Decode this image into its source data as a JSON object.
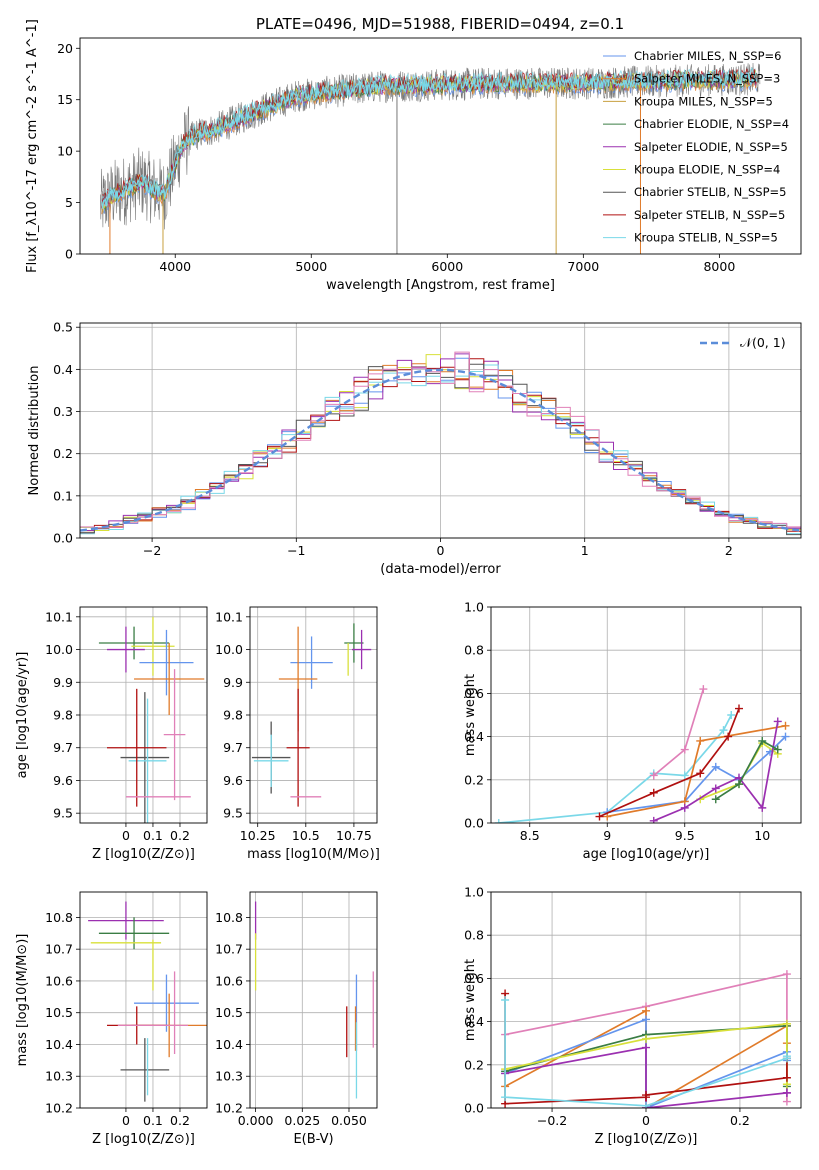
{
  "figure_title": "PLATE=0496, MJD=51988, FIBERID=0494, z=0.1",
  "colors": {
    "Chabrier MILES": "#6495ed",
    "Salpeter MILES": "#e07b2a",
    "Kroupa MILES": "#c8a040",
    "Chabrier ELODIE": "#3a7d44",
    "Salpeter ELODIE": "#9b30b0",
    "Kroupa ELODIE": "#d8e03a",
    "Chabrier STELIB": "#555555",
    "Salpeter STELIB": "#b01010",
    "Kroupa STELIB": "#7ad8e8",
    "pink": "#e080b8",
    "normal": "#5b8dd9"
  },
  "chart_data": [
    {
      "id": "spectrum",
      "type": "line",
      "xlabel": "wavelength [Angstrom, rest frame]",
      "ylabel": "Flux [f_λ10^-17 erg cm^-2 s^-1 A^-1]",
      "xlim": [
        3300,
        8600
      ],
      "ylim": [
        0,
        21
      ],
      "xticks": [
        4000,
        5000,
        6000,
        7000,
        8000
      ],
      "yticks": [
        0,
        5,
        10,
        15,
        20
      ],
      "grid": false,
      "legend_position": "top-right",
      "legend": [
        {
          "label": "Chabrier MILES, N_SSP=6",
          "color": "Chabrier MILES"
        },
        {
          "label": "Salpeter MILES, N_SSP=3",
          "color": "Salpeter MILES"
        },
        {
          "label": "Kroupa MILES, N_SSP=5",
          "color": "Kroupa MILES"
        },
        {
          "label": "Chabrier ELODIE, N_SSP=4",
          "color": "Chabrier ELODIE"
        },
        {
          "label": "Salpeter ELODIE, N_SSP=5",
          "color": "Salpeter ELODIE"
        },
        {
          "label": "Kroupa ELODIE, N_SSP=4",
          "color": "Kroupa ELODIE"
        },
        {
          "label": "Chabrier STELIB, N_SSP=5",
          "color": "Chabrier STELIB"
        },
        {
          "label": "Salpeter STELIB, N_SSP=5",
          "color": "Salpeter STELIB"
        },
        {
          "label": "Kroupa STELIB, N_SSP=5",
          "color": "Kroupa STELIB"
        }
      ],
      "continuum": [
        [
          3450,
          4.7
        ],
        [
          3550,
          5.8
        ],
        [
          3650,
          6.3
        ],
        [
          3750,
          7.0
        ],
        [
          3850,
          6.2
        ],
        [
          3920,
          5.8
        ],
        [
          3980,
          8.0
        ],
        [
          4050,
          10.5
        ],
        [
          4150,
          11.6
        ],
        [
          4300,
          12.2
        ],
        [
          4500,
          13.3
        ],
        [
          4700,
          14.4
        ],
        [
          4900,
          15.4
        ],
        [
          5100,
          15.7
        ],
        [
          5300,
          16.0
        ],
        [
          5500,
          16.3
        ],
        [
          5800,
          16.4
        ],
        [
          6100,
          16.5
        ],
        [
          6400,
          16.6
        ],
        [
          6700,
          16.6
        ],
        [
          7000,
          16.6
        ],
        [
          7300,
          16.7
        ],
        [
          7600,
          16.8
        ],
        [
          7900,
          16.9
        ],
        [
          8300,
          17.0
        ]
      ],
      "spikes": [
        {
          "x": 5630,
          "y": 0.0
        },
        {
          "x": 6800,
          "y": 0.0
        },
        {
          "x": 7420,
          "y": 0.0
        },
        {
          "x": 3910,
          "y": 0.0
        },
        {
          "x": 3520,
          "y": 0.0
        }
      ]
    },
    {
      "id": "residuals",
      "type": "histogram",
      "xlabel": "(data-model)/error",
      "ylabel": "Normed distribution",
      "xlim": [
        -2.5,
        2.5
      ],
      "ylim": [
        0,
        0.51
      ],
      "xticks": [
        -2,
        -1,
        0,
        1,
        2
      ],
      "yticks": [
        0.0,
        0.1,
        0.2,
        0.3,
        0.4,
        0.5
      ],
      "grid": true,
      "legend_position": "top-right",
      "legend": [
        {
          "label": "𝒩(0, 1)",
          "color": "normal"
        }
      ],
      "bin_width": 0.1
    },
    {
      "id": "age-vs-Z",
      "type": "errorbar",
      "xlabel": "Z [log10(Z/Z⊙)]",
      "ylabel": "age  [log10(age/yr)]",
      "xlim": [
        -0.17,
        0.3
      ],
      "ylim": [
        9.47,
        10.13
      ],
      "xticks": [
        0.0,
        0.1,
        0.2
      ],
      "yticks": [
        9.5,
        9.6,
        9.7,
        9.8,
        9.9,
        10.0,
        10.1
      ],
      "grid": true,
      "points": [
        {
          "series": "Chabrier ELODIE",
          "x": 0.03,
          "xerr": 0.13,
          "y": 10.02,
          "yerr": 0.05
        },
        {
          "series": "Kroupa ELODIE",
          "x": 0.1,
          "xerr": 0.08,
          "y": 10.01,
          "yerr": 0.09
        },
        {
          "series": "Salpeter ELODIE",
          "x": 0.0,
          "xerr": 0.07,
          "y": 10.0,
          "yerr": 0.07
        },
        {
          "series": "Chabrier MILES",
          "x": 0.15,
          "xerr": 0.1,
          "y": 9.96,
          "yerr": 0.1
        },
        {
          "series": "Salpeter MILES",
          "x": 0.16,
          "xerr": 0.13,
          "y": 9.91,
          "yerr": 0.11
        },
        {
          "series": "pink",
          "x": 0.18,
          "xerr": 0.04,
          "y": 9.74,
          "yerr": 0.2
        },
        {
          "series": "Chabrier STELIB",
          "x": 0.07,
          "xerr": 0.09,
          "y": 9.67,
          "yerr": 0.2
        },
        {
          "series": "Kroupa STELIB",
          "x": 0.08,
          "xerr": 0.07,
          "y": 9.66,
          "yerr": 0.19
        },
        {
          "series": "Salpeter STELIB",
          "x": 0.04,
          "xerr": 0.11,
          "y": 9.7,
          "yerr": 0.18
        },
        {
          "series": "pink",
          "x": 0.12,
          "xerr": 0.12,
          "y": 9.55,
          "yerr": 0.0
        }
      ]
    },
    {
      "id": "age-vs-mass",
      "type": "errorbar",
      "xlabel": "mass [log10(M/M⊙)]",
      "ylabel": "",
      "xlim": [
        10.21,
        10.87
      ],
      "ylim": [
        9.47,
        10.13
      ],
      "xticks": [
        10.25,
        10.5,
        10.75
      ],
      "yticks": [
        9.5,
        9.6,
        9.7,
        9.8,
        9.9,
        10.0,
        10.1
      ],
      "grid": true,
      "points": [
        {
          "series": "Chabrier ELODIE",
          "x": 10.75,
          "xerr": 0.05,
          "y": 10.02,
          "yerr": 0.06
        },
        {
          "series": "Salpeter ELODIE",
          "x": 10.79,
          "xerr": 0.05,
          "y": 10.0,
          "yerr": 0.06
        },
        {
          "series": "Kroupa ELODIE",
          "x": 10.72,
          "xerr": 0.0,
          "y": 9.97,
          "yerr": 0.05
        },
        {
          "series": "Chabrier MILES",
          "x": 10.53,
          "xerr": 0.11,
          "y": 9.96,
          "yerr": 0.08
        },
        {
          "series": "Salpeter MILES",
          "x": 10.46,
          "xerr": 0.1,
          "y": 9.91,
          "yerr": 0.16
        },
        {
          "series": "Salpeter STELIB",
          "x": 10.46,
          "xerr": 0.06,
          "y": 9.7,
          "yerr": 0.18
        },
        {
          "series": "Chabrier STELIB",
          "x": 10.32,
          "xerr": 0.1,
          "y": 9.67,
          "yerr": 0.11
        },
        {
          "series": "Kroupa STELIB",
          "x": 10.32,
          "xerr": 0.09,
          "y": 9.66,
          "yerr": 0.08
        },
        {
          "series": "pink",
          "x": 10.5,
          "xerr": 0.08,
          "y": 9.55,
          "yerr": 0.0
        }
      ]
    },
    {
      "id": "mass-weight-vs-age",
      "type": "line",
      "xlabel": "age  [log10(age/yr)]",
      "ylabel": "mass weight",
      "xlim": [
        8.25,
        10.25
      ],
      "ylim": [
        0,
        1
      ],
      "xticks": [
        8.5,
        9.0,
        9.5,
        10.0
      ],
      "yticks": [
        0.0,
        0.2,
        0.4,
        0.6,
        0.8,
        1.0
      ],
      "grid": true,
      "series": [
        {
          "name": "Kroupa STELIB",
          "x": [
            8.3,
            9.0,
            9.3,
            9.5,
            9.75,
            9.8
          ],
          "y": [
            0.0,
            0.05,
            0.23,
            0.22,
            0.43,
            0.5
          ]
        },
        {
          "name": "Chabrier MILES",
          "x": [
            9.0,
            9.5,
            9.7,
            9.85,
            10.05,
            10.15
          ],
          "y": [
            0.05,
            0.1,
            0.26,
            0.2,
            0.33,
            0.4
          ]
        },
        {
          "name": "Salpeter MILES",
          "x": [
            9.0,
            9.5,
            9.6,
            10.15
          ],
          "y": [
            0.03,
            0.1,
            0.38,
            0.45
          ]
        },
        {
          "name": "pink",
          "x": [
            9.3,
            9.5,
            9.62
          ],
          "y": [
            0.22,
            0.34,
            0.62
          ]
        },
        {
          "name": "Salpeter STELIB",
          "x": [
            8.95,
            9.3,
            9.6,
            9.78,
            9.85
          ],
          "y": [
            0.03,
            0.14,
            0.23,
            0.4,
            0.53
          ]
        },
        {
          "name": "Kroupa ELODIE",
          "x": [
            9.6,
            9.85,
            10.0,
            10.1
          ],
          "y": [
            0.11,
            0.18,
            0.37,
            0.32
          ]
        },
        {
          "name": "Salpeter ELODIE",
          "x": [
            9.3,
            9.5,
            9.7,
            9.85,
            10.0,
            10.1
          ],
          "y": [
            0.01,
            0.07,
            0.16,
            0.21,
            0.07,
            0.47
          ]
        },
        {
          "name": "Chabrier ELODIE",
          "x": [
            9.7,
            9.85,
            10.0,
            10.1
          ],
          "y": [
            0.11,
            0.18,
            0.38,
            0.34
          ]
        }
      ]
    },
    {
      "id": "mass-vs-Z",
      "type": "errorbar",
      "xlabel": "Z [log10(Z/Z⊙)]",
      "ylabel": "mass [log10(M/M⊙)]",
      "xlim": [
        -0.17,
        0.3
      ],
      "ylim": [
        10.2,
        10.88
      ],
      "xticks": [
        0.0,
        0.1,
        0.2
      ],
      "yticks": [
        10.2,
        10.3,
        10.4,
        10.5,
        10.6,
        10.7,
        10.8
      ],
      "grid": true,
      "points": [
        {
          "series": "Salpeter ELODIE",
          "x": 0.0,
          "xerr": 0.14,
          "y": 10.79,
          "yerr": 0.06
        },
        {
          "series": "Chabrier ELODIE",
          "x": 0.03,
          "xerr": 0.13,
          "y": 10.75,
          "yerr": 0.05
        },
        {
          "series": "Kroupa ELODIE",
          "x": 0.0,
          "xerr": 0.13,
          "y": 10.72,
          "yerr": 0.0
        },
        {
          "series": "Kroupa ELODIE",
          "x": 0.1,
          "xerr": 0.0,
          "y": 10.65,
          "yerr": 0.08
        },
        {
          "series": "Chabrier MILES",
          "x": 0.15,
          "xerr": 0.12,
          "y": 10.53,
          "yerr": 0.09
        },
        {
          "series": "pink",
          "x": 0.18,
          "xerr": 0.0,
          "y": 10.5,
          "yerr": 0.13
        },
        {
          "series": "Salpeter MILES",
          "x": 0.16,
          "xerr": 0.14,
          "y": 10.46,
          "yerr": 0.1
        },
        {
          "series": "Salpeter STELIB",
          "x": 0.04,
          "xerr": 0.11,
          "y": 10.46,
          "yerr": 0.06
        },
        {
          "series": "pink",
          "x": 0.1,
          "xerr": 0.13,
          "y": 10.46,
          "yerr": 0.0
        },
        {
          "series": "Chabrier STELIB",
          "x": 0.07,
          "xerr": 0.09,
          "y": 10.32,
          "yerr": 0.1
        },
        {
          "series": "Kroupa STELIB",
          "x": 0.08,
          "xerr": 0.0,
          "y": 10.33,
          "yerr": 0.09
        }
      ]
    },
    {
      "id": "mass-vs-EBV",
      "type": "errorbar",
      "xlabel": "E(B-V)",
      "ylabel": "",
      "xlim": [
        -0.003,
        0.065
      ],
      "ylim": [
        10.2,
        10.88
      ],
      "xticks": [
        0.0,
        0.025,
        0.05
      ],
      "xtick_labels": [
        "0.000",
        "0.025",
        "0.050"
      ],
      "yticks": [
        10.2,
        10.3,
        10.4,
        10.5,
        10.6,
        10.7,
        10.8
      ],
      "grid": true,
      "points": [
        {
          "series": "Salpeter ELODIE",
          "x": 0.0,
          "xerr": 0.0,
          "y": 10.79,
          "yerr": 0.06
        },
        {
          "series": "Kroupa ELODIE",
          "x": 0.0,
          "xerr": 0.0,
          "y": 10.66,
          "yerr": 0.09
        },
        {
          "series": "Chabrier MILES",
          "x": 0.054,
          "xerr": 0.0,
          "y": 10.5,
          "yerr": 0.12
        },
        {
          "series": "pink",
          "x": 0.063,
          "xerr": 0.0,
          "y": 10.51,
          "yerr": 0.12
        },
        {
          "series": "Salpeter STELIB",
          "x": 0.0488,
          "xerr": 0.0,
          "y": 10.44,
          "yerr": 0.08
        },
        {
          "series": "Salpeter MILES",
          "x": 0.0535,
          "xerr": 0.0,
          "y": 10.45,
          "yerr": 0.07
        },
        {
          "series": "Kroupa STELIB",
          "x": 0.054,
          "xerr": 0.0,
          "y": 10.35,
          "yerr": 0.12
        }
      ]
    },
    {
      "id": "mass-weight-vs-Z",
      "type": "line",
      "xlabel": "Z [log10(Z/Z⊙)]",
      "ylabel": "mass weight",
      "xlim": [
        -0.33,
        0.33
      ],
      "ylim": [
        0,
        1
      ],
      "xticks": [
        -0.2,
        0.0,
        0.2
      ],
      "yticks": [
        0.0,
        0.2,
        0.4,
        0.6,
        0.8,
        1.0
      ],
      "grid": true,
      "series": [
        {
          "name": "pink",
          "x": [
            -0.3,
            0.0,
            0.3,
            0.3
          ],
          "y": [
            0.34,
            0.47,
            0.62,
            0.03
          ]
        },
        {
          "name": "Salpeter MILES",
          "x": [
            -0.3,
            0.0,
            0.0,
            0.3,
            0.3
          ],
          "y": [
            0.1,
            0.45,
            0.0,
            0.38,
            0.3
          ]
        },
        {
          "name": "Chabrier MILES",
          "x": [
            -0.3,
            0.0,
            0.0,
            0.3,
            0.3
          ],
          "y": [
            0.16,
            0.41,
            0.0,
            0.26,
            0.22
          ]
        },
        {
          "name": "Chabrier ELODIE",
          "x": [
            -0.3,
            0.0,
            0.3,
            0.3
          ],
          "y": [
            0.17,
            0.34,
            0.38,
            0.1
          ]
        },
        {
          "name": "Kroupa ELODIE",
          "x": [
            -0.3,
            0.0,
            0.3,
            0.3
          ],
          "y": [
            0.18,
            0.32,
            0.39,
            0.11
          ]
        },
        {
          "name": "Salpeter ELODIE",
          "x": [
            -0.3,
            0.0,
            0.0,
            0.3,
            0.3
          ],
          "y": [
            0.16,
            0.28,
            0.0,
            0.07,
            0.07
          ]
        },
        {
          "name": "Salpeter STELIB",
          "x": [
            -0.3,
            -0.3,
            0.0,
            0.0,
            0.3,
            0.3
          ],
          "y": [
            0.53,
            0.02,
            0.05,
            0.06,
            0.14,
            0.23
          ]
        },
        {
          "name": "Kroupa STELIB",
          "x": [
            -0.3,
            -0.3,
            0.0,
            0.3,
            0.3
          ],
          "y": [
            0.5,
            0.05,
            0.01,
            0.23,
            0.24
          ]
        }
      ]
    }
  ]
}
